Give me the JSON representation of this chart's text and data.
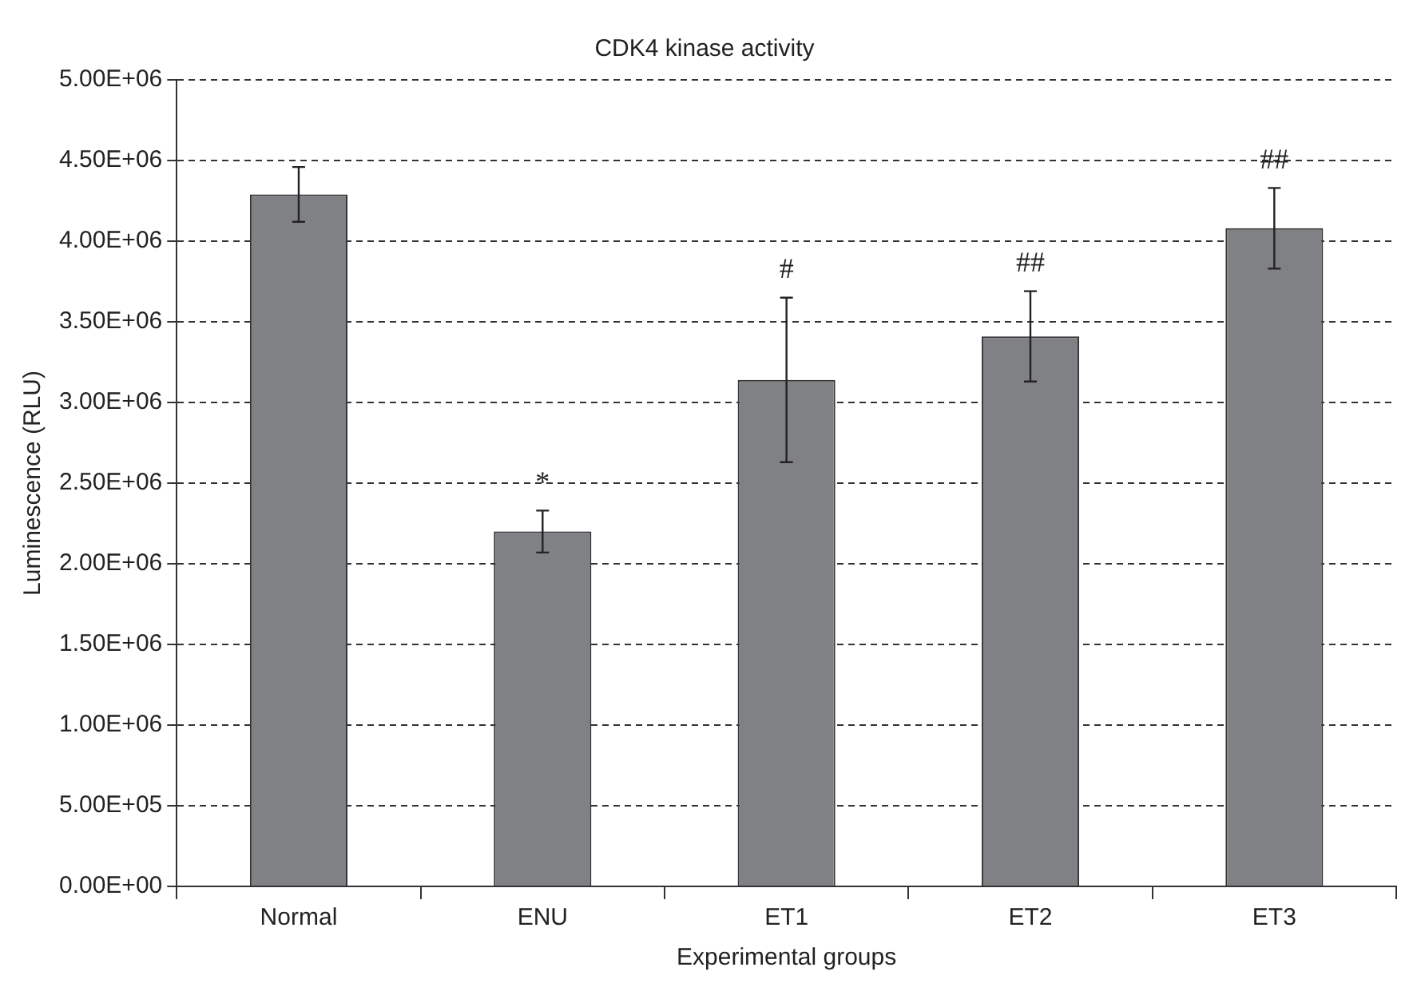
{
  "chart_data": {
    "type": "bar",
    "title": "CDK4 kinase activity",
    "xlabel": "Experimental groups",
    "ylabel": "Luminescence (RLU)",
    "categories": [
      "Normal",
      "ENU",
      "ET1",
      "ET2",
      "ET3"
    ],
    "values": [
      4290000,
      2200000,
      3140000,
      3410000,
      4080000
    ],
    "errors": [
      170000,
      130000,
      510000,
      280000,
      250000
    ],
    "color": "#808184",
    "ylim": [
      0,
      5000000
    ],
    "yticks": [
      {
        "value": 0,
        "label": "0.00E+00"
      },
      {
        "value": 500000,
        "label": "5.00E+05"
      },
      {
        "value": 1000000,
        "label": "1.00E+06"
      },
      {
        "value": 1500000,
        "label": "1.50E+06"
      },
      {
        "value": 2000000,
        "label": "2.00E+06"
      },
      {
        "value": 2500000,
        "label": "2.50E+06"
      },
      {
        "value": 3000000,
        "label": "3.00E+06"
      },
      {
        "value": 3500000,
        "label": "3.50E+06"
      },
      {
        "value": 4000000,
        "label": "4.00E+06"
      },
      {
        "value": 4500000,
        "label": "4.50E+06"
      },
      {
        "value": 5000000,
        "label": "5.00E+06"
      }
    ],
    "grid": "y",
    "line_style": "dashed",
    "legend": false,
    "annotations": [
      "*",
      "#",
      "##",
      "##"
    ]
  }
}
